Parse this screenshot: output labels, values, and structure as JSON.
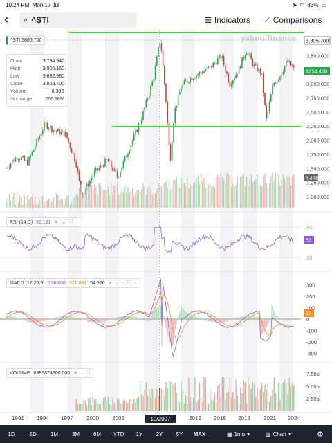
{
  "status": {
    "time": "10:24 PM",
    "date": "Mon 17 Jul",
    "battery": "83%"
  },
  "search": {
    "query": "^STI"
  },
  "toolbar": {
    "indicators_label": "Indicators",
    "comparisons_label": "Comparisons"
  },
  "watermark": "yahoo/finance",
  "main_panel": {
    "ticker_label": "^STI",
    "ticker_value": "3805.700",
    "ohlc": {
      "open_label": "Open",
      "open": "3,734.940",
      "high_label": "High",
      "high": "3,906.160",
      "low_label": "Low",
      "low": "3,632.980",
      "close_label": "Close",
      "close": "3,805.700",
      "volume_label": "Volume",
      "volume": "6.38B",
      "change_label": "% change",
      "change": "266.18%"
    },
    "crosshair_price": "3,805.700",
    "last_price": "3254.430",
    "volume_tag": "6.43B",
    "y_ticks": [
      "3,500.000",
      "3,250.000",
      "3,000.000",
      "2,750.000",
      "2,500.000",
      "2,250.000",
      "2,000.000",
      "1,750.000",
      "1,500.000",
      "1,250.000",
      "1,000.000"
    ]
  },
  "rsi_panel": {
    "label": "RSI (14,C)",
    "value": "82.131",
    "last": "53",
    "y_ticks": [
      "80",
      "20"
    ]
  },
  "macd_panel": {
    "label": "MACD (12,26,9)",
    "v1": "376.806",
    "v2": "321.881",
    "v3": "54.926",
    "last": "53",
    "y_ticks": [
      "300",
      "200",
      "100",
      "0",
      "-100",
      "-200",
      "-300"
    ]
  },
  "volume_panel": {
    "label": "VOLUME",
    "value": "6383874800.000",
    "y_ticks": [
      "7.50b",
      "5.00b",
      "2.50b"
    ]
  },
  "x_axis": {
    "labels": [
      "1991",
      "1994",
      "1997",
      "2000",
      "2003",
      "2012",
      "2015",
      "2018",
      "2021",
      "2024"
    ],
    "crosshair_label": "10/2007"
  },
  "ranges": [
    "1D",
    "5D",
    "1M",
    "3M",
    "6M",
    "YTD",
    "1Y",
    "2Y",
    "5Y",
    "MAX"
  ],
  "selected_range": "MAX",
  "interval": "1mo",
  "chart_type": "Chart",
  "colors": {
    "up": "#2ea44f",
    "down": "#d23b3b",
    "rsi": "#8e5bd6",
    "macd": "#8e5bd6",
    "signal": "#f08c1b",
    "highlight": "#3cd63c"
  }
}
